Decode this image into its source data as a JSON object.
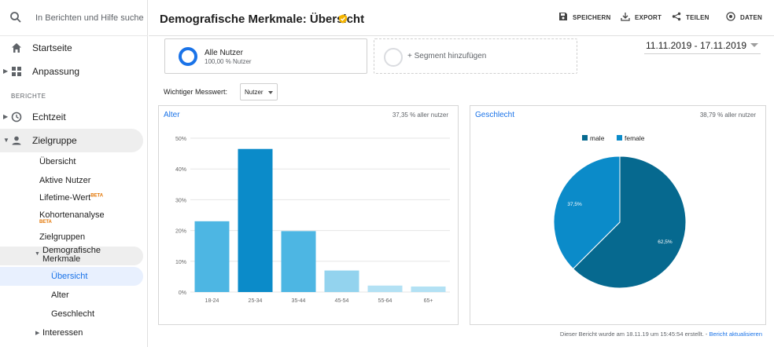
{
  "sidebar": {
    "search_placeholder": "In Berichten und Hilfe suche",
    "items": [
      {
        "label": "Startseite",
        "icon": "home-icon"
      },
      {
        "label": "Anpassung",
        "icon": "dashboard-icon"
      },
      {
        "label": "Echtzeit",
        "icon": "clock-icon"
      },
      {
        "label": "Zielgruppe",
        "icon": "person-icon"
      }
    ],
    "section_label": "BERICHTE",
    "audience_subitems": {
      "uebersicht": "Übersicht",
      "aktive_nutzer": "Aktive Nutzer",
      "lifetime_wert": "Lifetime-Wert",
      "kohortenanalyse": "Kohortenanalyse",
      "zielgruppen": "Zielgruppen",
      "demografische_merkmale": "Demografische Merkmale",
      "interessen": "Interessen"
    },
    "beta_label": "BETA",
    "demo_subitems": [
      "Übersicht",
      "Alter",
      "Geschlecht"
    ]
  },
  "header": {
    "title": "Demografische Merkmale: Übersicht",
    "buttons": {
      "save": "SPEICHERN",
      "export": "EXPORT",
      "share": "TEILEN",
      "insights": "DATEN"
    }
  },
  "segments": {
    "active_name": "Alle Nutzer",
    "active_pct": "100,00 % Nutzer",
    "add_label": "+ Segment hinzufügen"
  },
  "date_range": "11.11.2019 - 17.11.2019",
  "metric": {
    "label": "Wichtiger Messwert:",
    "value": "Nutzer"
  },
  "age_panel": {
    "title": "Alter",
    "pct_label": "37,35 % aller nutzer"
  },
  "gender_panel": {
    "title": "Geschlecht",
    "pct_label": "38,79 % aller nutzer"
  },
  "chart_data": [
    {
      "type": "bar",
      "categories": [
        "18-24",
        "25-34",
        "35-44",
        "45-54",
        "55-64",
        "65+"
      ],
      "values": [
        23,
        46.5,
        19.8,
        7,
        2.1,
        1.8
      ],
      "ylim": [
        0,
        50
      ],
      "yticks": [
        0,
        10,
        20,
        30,
        40,
        50
      ],
      "ytick_labels": [
        "0%",
        "10%",
        "20%",
        "30%",
        "40%",
        "50%"
      ],
      "colors": [
        "#4db6e3",
        "#0b8bc9",
        "#4db6e3",
        "#93d3ee",
        "#b3e1f4",
        "#b3e1f4"
      ],
      "grid": true,
      "title": "",
      "xlabel": "",
      "ylabel": ""
    },
    {
      "type": "pie",
      "categories": [
        "male",
        "female"
      ],
      "values": [
        62.5,
        37.5
      ],
      "data_labels": [
        "62,5%",
        "37,5%"
      ],
      "colors": [
        "#06698f",
        "#0b8bc9"
      ],
      "legend": "top",
      "title": ""
    }
  ],
  "footer": {
    "text": "Dieser Bericht wurde am 18.11.19 um 15:45:54 erstellt. - ",
    "link": "Bericht aktualisieren"
  }
}
